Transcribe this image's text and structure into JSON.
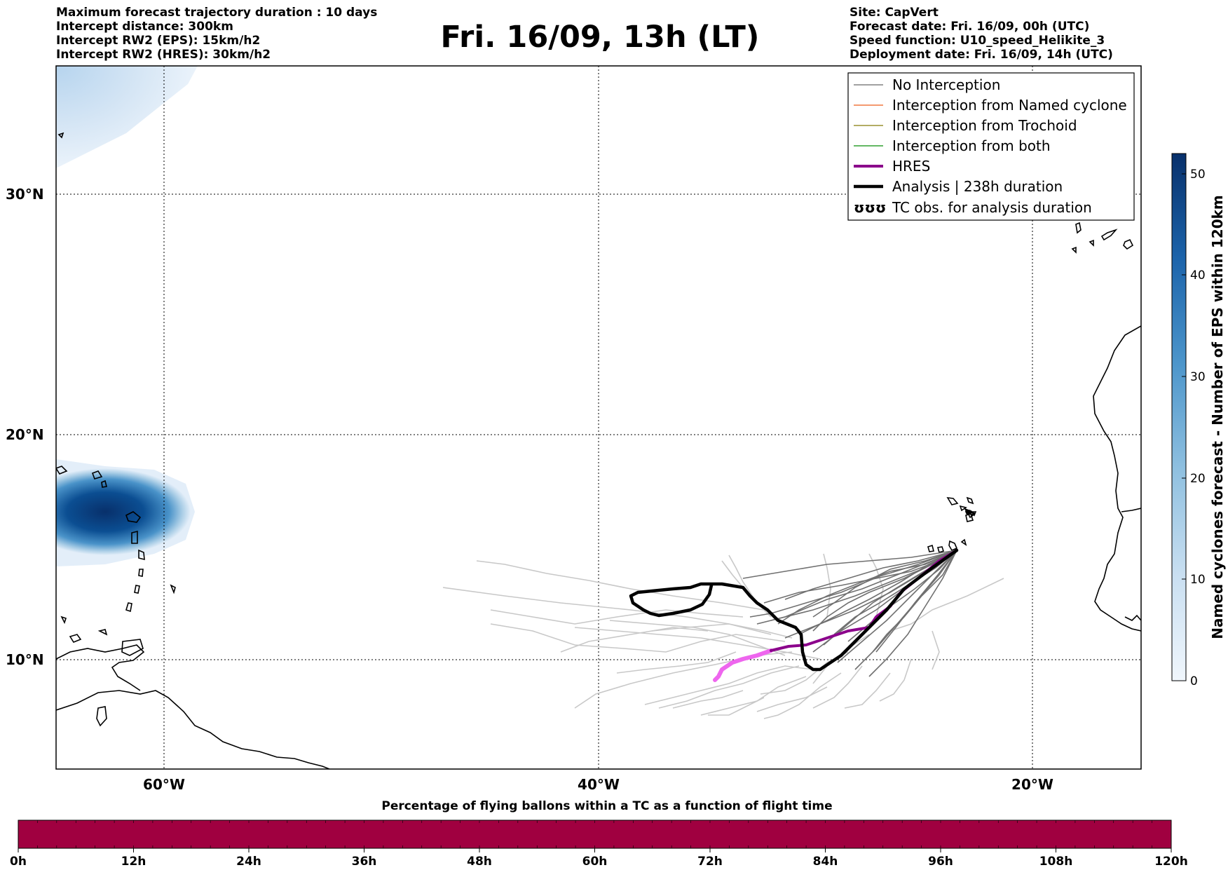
{
  "header_left": [
    "Maximum forecast trajectory duration : 10 days",
    "Intercept distance: 300km",
    "Intercept RW2 (EPS):  15km/h2",
    "Intercept RW2 (HRES): 30km/h2"
  ],
  "header_right": [
    "Site: CapVert",
    "Forecast date: Fri. 16/09, 00h (UTC)",
    "Speed function: U10_speed_Helikite_3",
    "Deployment date: Fri. 16/09, 14h (UTC)"
  ],
  "title": "Fri. 16/09, 13h (LT)",
  "map": {
    "lat_labels": [
      "30°N",
      "20°N",
      "10°N"
    ],
    "lon_labels": [
      "60°W",
      "40°W",
      "20°W"
    ],
    "lon_range": [
      -65,
      -15
    ],
    "lat_range": [
      5.5,
      35.3
    ],
    "gridlines": "dotted",
    "legend_position": "top-right",
    "legend": [
      {
        "label": "No Interception",
        "color": "#808080",
        "style": "thin"
      },
      {
        "label": "Interception from Named cyclone",
        "color": "#f07840",
        "style": "thin"
      },
      {
        "label": "Interception from Trochoid",
        "color": "#9a9030",
        "style": "thin"
      },
      {
        "label": "Interception from both",
        "color": "#30a030",
        "style": "thin"
      },
      {
        "label": "HRES",
        "color": "#8b008b",
        "style": "thick"
      },
      {
        "label": "Analysis | 238h duration",
        "color": "#000000",
        "style": "thick"
      },
      {
        "label": "TC obs. for analysis duration",
        "color": "#000000",
        "style": "symbol",
        "symbol": "ʊʊʊ"
      }
    ],
    "launch_site": {
      "lon": -23.5,
      "lat": 15.0
    }
  },
  "colorbar": {
    "label": "Named cyclones forecast - Number of EPS within 120km",
    "ticks": [
      "0",
      "10",
      "20",
      "30",
      "40",
      "50"
    ],
    "range": [
      0,
      52
    ],
    "color_low": "#f0f6fc",
    "color_high": "#08306b"
  },
  "bottom_bar": {
    "title": "Percentage of flying ballons within a TC as a function of flight time",
    "ticks": [
      "0h",
      "12h",
      "24h",
      "36h",
      "48h",
      "60h",
      "72h",
      "84h",
      "96h",
      "108h",
      "120h"
    ],
    "fill_color": "#a00040"
  }
}
